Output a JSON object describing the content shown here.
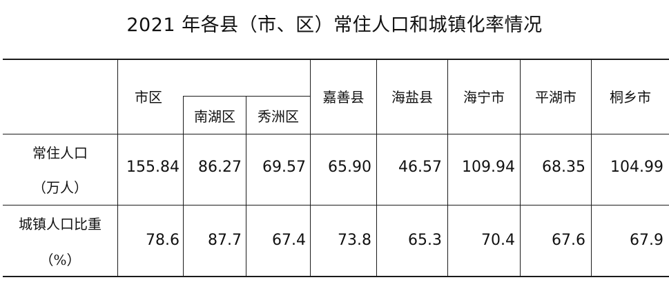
{
  "title": "2021 年各县（市、区）常住人口和城镇化率情况",
  "table": {
    "columns": {
      "shiqu": "市区",
      "nanhu": "南湖区",
      "xiuzhou": "秀洲区",
      "jiashan": "嘉善县",
      "haiyan": "海盐县",
      "haining": "海宁市",
      "pinghu": "平湖市",
      "tongxiang": "桐乡市"
    },
    "rows": [
      {
        "label_line1": "常住人口",
        "label_line2": "（万人）",
        "values": [
          "155.84",
          "86.27",
          "69.57",
          "65.90",
          "46.57",
          "109.94",
          "68.35",
          "104.99"
        ]
      },
      {
        "label_line1": "城镇人口比重",
        "label_line2": "（%）",
        "values": [
          "78.6",
          "87.7",
          "67.4",
          "73.8",
          "65.3",
          "70.4",
          "67.6",
          "67.9"
        ]
      }
    ]
  }
}
